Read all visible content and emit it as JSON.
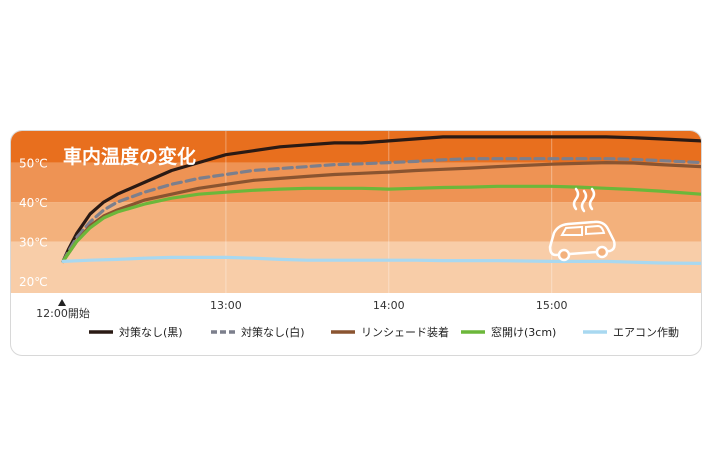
{
  "chart_data": {
    "type": "line",
    "title": "車内温度の変化",
    "xlabel": "",
    "ylabel": "",
    "x_ticks": [
      {
        "label": "12:00開始",
        "value": 0
      },
      {
        "label": "13:00",
        "value": 60
      },
      {
        "label": "14:00",
        "value": 120
      },
      {
        "label": "15:00",
        "value": 180
      }
    ],
    "y_ticks": [
      {
        "label": "20℃",
        "value": 20
      },
      {
        "label": "30℃",
        "value": 30
      },
      {
        "label": "40℃",
        "value": 40
      },
      {
        "label": "50℃",
        "value": 50
      }
    ],
    "xlim": [
      0,
      235
    ],
    "ylim": [
      17,
      58
    ],
    "grid": false,
    "legend_position": "bottom",
    "bands": [
      {
        "from": 17,
        "to": 30,
        "color": "#f8cda8"
      },
      {
        "from": 30,
        "to": 40,
        "color": "#f3b17c"
      },
      {
        "from": 40,
        "to": 50,
        "color": "#ee9354"
      },
      {
        "from": 50,
        "to": 58,
        "color": "#e86f1e"
      }
    ],
    "series": [
      {
        "name": "対策なし(黒)",
        "color": "#2a1a14",
        "dash": false,
        "points": [
          [
            0,
            25
          ],
          [
            2,
            28
          ],
          [
            5,
            32
          ],
          [
            10,
            37
          ],
          [
            15,
            40
          ],
          [
            20,
            42
          ],
          [
            30,
            45
          ],
          [
            40,
            48
          ],
          [
            50,
            50
          ],
          [
            60,
            52
          ],
          [
            70,
            53
          ],
          [
            80,
            54
          ],
          [
            90,
            54.5
          ],
          [
            100,
            55
          ],
          [
            110,
            55
          ],
          [
            120,
            55.5
          ],
          [
            130,
            56
          ],
          [
            140,
            56.5
          ],
          [
            150,
            56.5
          ],
          [
            160,
            56.5
          ],
          [
            170,
            56.5
          ],
          [
            180,
            56.5
          ],
          [
            190,
            56.5
          ],
          [
            200,
            56.5
          ],
          [
            210,
            56.3
          ],
          [
            220,
            56
          ],
          [
            235,
            55.5
          ]
        ]
      },
      {
        "name": "対策なし(白)",
        "color": "#7c7f8c",
        "dash": true,
        "points": [
          [
            0,
            25
          ],
          [
            2,
            27.5
          ],
          [
            5,
            31
          ],
          [
            10,
            35
          ],
          [
            15,
            38
          ],
          [
            20,
            40
          ],
          [
            30,
            42.5
          ],
          [
            40,
            44.5
          ],
          [
            50,
            46
          ],
          [
            60,
            47
          ],
          [
            70,
            48
          ],
          [
            80,
            48.5
          ],
          [
            90,
            49
          ],
          [
            100,
            49.5
          ],
          [
            110,
            49.7
          ],
          [
            120,
            50
          ],
          [
            130,
            50.3
          ],
          [
            140,
            50.7
          ],
          [
            150,
            51
          ],
          [
            160,
            51
          ],
          [
            170,
            51
          ],
          [
            180,
            51
          ],
          [
            190,
            51
          ],
          [
            200,
            51
          ],
          [
            210,
            50.8
          ],
          [
            220,
            50.5
          ],
          [
            235,
            50
          ]
        ]
      },
      {
        "name": "リンシェード装着",
        "color": "#8a5430",
        "dash": false,
        "points": [
          [
            0,
            25
          ],
          [
            2,
            27
          ],
          [
            5,
            30
          ],
          [
            10,
            34
          ],
          [
            15,
            36.5
          ],
          [
            20,
            38
          ],
          [
            30,
            40.5
          ],
          [
            40,
            42
          ],
          [
            50,
            43.5
          ],
          [
            60,
            44.5
          ],
          [
            70,
            45.5
          ],
          [
            80,
            46
          ],
          [
            90,
            46.5
          ],
          [
            100,
            47
          ],
          [
            110,
            47.3
          ],
          [
            120,
            47.6
          ],
          [
            130,
            48
          ],
          [
            140,
            48.3
          ],
          [
            150,
            48.6
          ],
          [
            160,
            49
          ],
          [
            170,
            49.3
          ],
          [
            180,
            49.6
          ],
          [
            190,
            49.8
          ],
          [
            200,
            50
          ],
          [
            210,
            49.9
          ],
          [
            220,
            49.5
          ],
          [
            235,
            49
          ]
        ]
      },
      {
        "name": "窓開け(3cm)",
        "color": "#6cb73a",
        "dash": false,
        "points": [
          [
            0,
            25
          ],
          [
            2,
            27
          ],
          [
            5,
            30
          ],
          [
            10,
            33.5
          ],
          [
            15,
            36
          ],
          [
            20,
            37.5
          ],
          [
            30,
            39.5
          ],
          [
            40,
            41
          ],
          [
            50,
            42
          ],
          [
            60,
            42.5
          ],
          [
            70,
            43
          ],
          [
            80,
            43.3
          ],
          [
            90,
            43.5
          ],
          [
            100,
            43.5
          ],
          [
            110,
            43.5
          ],
          [
            120,
            43.3
          ],
          [
            130,
            43.5
          ],
          [
            140,
            43.7
          ],
          [
            150,
            43.8
          ],
          [
            160,
            44
          ],
          [
            170,
            44
          ],
          [
            180,
            44
          ],
          [
            190,
            43.8
          ],
          [
            200,
            43.5
          ],
          [
            210,
            43.2
          ],
          [
            220,
            42.8
          ],
          [
            235,
            42
          ]
        ]
      },
      {
        "name": "エアコン作動",
        "color": "#a8d8f0",
        "dash": false,
        "points": [
          [
            0,
            25
          ],
          [
            10,
            25.3
          ],
          [
            20,
            25.5
          ],
          [
            30,
            25.8
          ],
          [
            40,
            26
          ],
          [
            50,
            26
          ],
          [
            60,
            26
          ],
          [
            70,
            25.8
          ],
          [
            80,
            25.5
          ],
          [
            90,
            25.3
          ],
          [
            100,
            25.3
          ],
          [
            110,
            25.3
          ],
          [
            120,
            25.3
          ],
          [
            130,
            25.3
          ],
          [
            140,
            25.2
          ],
          [
            150,
            25.2
          ],
          [
            160,
            25.2
          ],
          [
            170,
            25.1
          ],
          [
            180,
            25
          ],
          [
            190,
            25
          ],
          [
            200,
            25
          ],
          [
            210,
            24.8
          ],
          [
            220,
            24.6
          ],
          [
            235,
            24.5
          ]
        ]
      }
    ]
  },
  "car_icon": {
    "name": "hot-car-icon",
    "color": "#ffffff"
  }
}
